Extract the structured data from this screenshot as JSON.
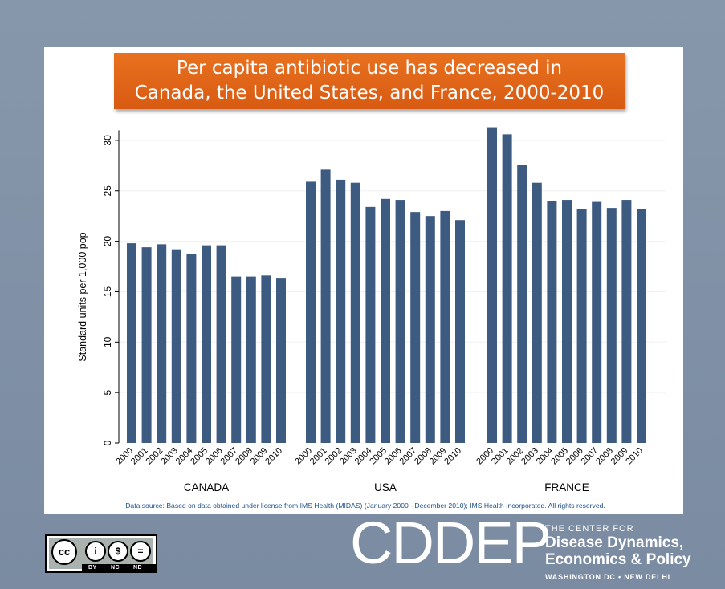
{
  "header": {
    "title_line1": "Per capita antibiotic use has decreased in",
    "title_line2": "Canada, the United States, and France, 2000-2010"
  },
  "chart_data": {
    "type": "bar",
    "ylabel": "Standard units per 1,000 pop",
    "ylim": [
      0,
      31
    ],
    "yticks": [
      0,
      5,
      10,
      15,
      20,
      25,
      30
    ],
    "grid": true,
    "bar_color": "#3d5a80",
    "years": [
      "2000",
      "2001",
      "2002",
      "2003",
      "2004",
      "2005",
      "2006",
      "2007",
      "2008",
      "2009",
      "2010"
    ],
    "groups": [
      {
        "name": "CANADA",
        "values": [
          19.8,
          19.4,
          19.7,
          19.2,
          18.7,
          19.6,
          19.6,
          16.5,
          16.5,
          16.6,
          16.3
        ]
      },
      {
        "name": "USA",
        "values": [
          25.9,
          27.1,
          26.1,
          25.8,
          23.4,
          24.2,
          24.1,
          22.9,
          22.5,
          23.0,
          22.1
        ]
      },
      {
        "name": "FRANCE",
        "values": [
          31.3,
          30.6,
          27.6,
          25.8,
          24.0,
          24.1,
          23.2,
          23.9,
          23.3,
          24.1,
          23.2
        ]
      }
    ]
  },
  "footer": {
    "source": "Data source: Based on data obtained under license from IMS Health (MIDAS) (January 2000 - December 2010); IMS Health Incorporated. All rights reserved.",
    "license": {
      "cc": "cc",
      "by": "BY",
      "nc": "NC",
      "nd": "ND"
    },
    "logo_text": "CDDEP",
    "logo_line1": "THE CENTER FOR",
    "logo_line2": "Disease Dynamics,",
    "logo_line3": "Economics & Policy",
    "logo_line4": "WASHINGTON DC • NEW DELHI"
  }
}
